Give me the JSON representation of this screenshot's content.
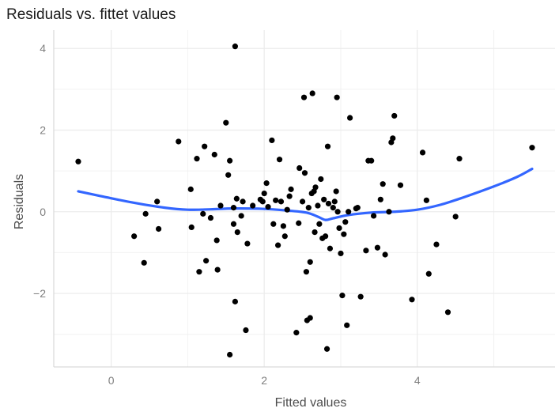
{
  "chart_data": {
    "type": "scatter",
    "title": "Residuals vs. fittet values",
    "xlabel": "Fitted values",
    "ylabel": "Residuals",
    "xlim": [
      -0.75,
      5.8
    ],
    "ylim": [
      -3.8,
      4.45
    ],
    "x_ticks": [
      0,
      2,
      4
    ],
    "y_ticks": [
      -2,
      0,
      2,
      4
    ],
    "x_tick_labels": [
      "0",
      "2",
      "4"
    ],
    "y_tick_labels": [
      "−2",
      "0",
      "2",
      "4"
    ],
    "grid": true,
    "point_color": "#000000",
    "smooth_color": "#3366ff",
    "points": [
      [
        -0.43,
        1.23
      ],
      [
        0.3,
        -0.6
      ],
      [
        0.43,
        -1.25
      ],
      [
        0.45,
        -0.05
      ],
      [
        0.6,
        0.25
      ],
      [
        0.62,
        -0.42
      ],
      [
        0.88,
        1.72
      ],
      [
        1.04,
        0.55
      ],
      [
        1.05,
        -0.38
      ],
      [
        1.12,
        1.3
      ],
      [
        1.15,
        -1.47
      ],
      [
        1.2,
        -0.05
      ],
      [
        1.22,
        1.6
      ],
      [
        1.24,
        -1.2
      ],
      [
        1.3,
        -0.15
      ],
      [
        1.35,
        1.4
      ],
      [
        1.38,
        -0.7
      ],
      [
        1.39,
        -1.42
      ],
      [
        1.43,
        0.15
      ],
      [
        1.5,
        2.18
      ],
      [
        1.53,
        0.9
      ],
      [
        1.55,
        1.25
      ],
      [
        1.55,
        -3.5
      ],
      [
        1.6,
        -0.3
      ],
      [
        1.6,
        0.1
      ],
      [
        1.62,
        -2.2
      ],
      [
        1.62,
        4.05
      ],
      [
        1.64,
        0.32
      ],
      [
        1.65,
        -0.5
      ],
      [
        1.7,
        -0.1
      ],
      [
        1.72,
        0.25
      ],
      [
        1.76,
        -2.9
      ],
      [
        1.78,
        -0.78
      ],
      [
        1.85,
        0.15
      ],
      [
        1.95,
        0.3
      ],
      [
        1.98,
        0.25
      ],
      [
        2.0,
        0.45
      ],
      [
        2.03,
        0.7
      ],
      [
        2.05,
        0.12
      ],
      [
        2.1,
        1.75
      ],
      [
        2.12,
        -0.3
      ],
      [
        2.15,
        0.28
      ],
      [
        2.18,
        -0.82
      ],
      [
        2.2,
        1.28
      ],
      [
        2.22,
        0.25
      ],
      [
        2.25,
        -0.35
      ],
      [
        2.27,
        -0.6
      ],
      [
        2.3,
        0.05
      ],
      [
        2.33,
        0.38
      ],
      [
        2.35,
        0.55
      ],
      [
        2.42,
        -2.96
      ],
      [
        2.45,
        -0.28
      ],
      [
        2.46,
        1.07
      ],
      [
        2.5,
        0.25
      ],
      [
        2.52,
        2.8
      ],
      [
        2.53,
        0.95
      ],
      [
        2.55,
        -1.47
      ],
      [
        2.56,
        -2.66
      ],
      [
        2.58,
        0.1
      ],
      [
        2.6,
        -2.6
      ],
      [
        2.6,
        -1.23
      ],
      [
        2.62,
        0.45
      ],
      [
        2.63,
        2.9
      ],
      [
        2.65,
        0.5
      ],
      [
        2.66,
        -0.5
      ],
      [
        2.67,
        0.6
      ],
      [
        2.7,
        0.15
      ],
      [
        2.72,
        -0.3
      ],
      [
        2.74,
        0.8
      ],
      [
        2.76,
        -0.65
      ],
      [
        2.78,
        0.3
      ],
      [
        2.8,
        -0.6
      ],
      [
        2.82,
        -3.36
      ],
      [
        2.83,
        1.6
      ],
      [
        2.84,
        0.2
      ],
      [
        2.86,
        -0.9
      ],
      [
        2.9,
        0.1
      ],
      [
        2.92,
        0.25
      ],
      [
        2.94,
        0.5
      ],
      [
        2.95,
        2.8
      ],
      [
        2.96,
        0.0
      ],
      [
        2.98,
        -0.4
      ],
      [
        3.0,
        -1.02
      ],
      [
        3.02,
        -2.05
      ],
      [
        3.04,
        -0.55
      ],
      [
        3.06,
        -0.25
      ],
      [
        3.08,
        -2.78
      ],
      [
        3.1,
        0.0
      ],
      [
        3.12,
        2.3
      ],
      [
        3.2,
        0.08
      ],
      [
        3.22,
        0.1
      ],
      [
        3.26,
        -2.08
      ],
      [
        3.33,
        -0.95
      ],
      [
        3.36,
        1.25
      ],
      [
        3.4,
        1.25
      ],
      [
        3.43,
        -0.1
      ],
      [
        3.48,
        -0.88
      ],
      [
        3.52,
        0.3
      ],
      [
        3.55,
        0.68
      ],
      [
        3.58,
        -1.05
      ],
      [
        3.63,
        0.0
      ],
      [
        3.66,
        1.7
      ],
      [
        3.68,
        1.8
      ],
      [
        3.7,
        2.35
      ],
      [
        3.78,
        0.65
      ],
      [
        3.93,
        -2.15
      ],
      [
        4.07,
        1.45
      ],
      [
        4.12,
        0.28
      ],
      [
        4.15,
        -1.52
      ],
      [
        4.25,
        -0.8
      ],
      [
        4.4,
        -2.46
      ],
      [
        4.5,
        -0.12
      ],
      [
        4.55,
        1.3
      ],
      [
        5.5,
        1.57
      ]
    ],
    "smooth": [
      [
        -0.43,
        0.5
      ],
      [
        -0.1,
        0.37
      ],
      [
        0.3,
        0.22
      ],
      [
        0.7,
        0.1
      ],
      [
        1.0,
        0.05
      ],
      [
        1.3,
        0.06
      ],
      [
        1.6,
        0.08
      ],
      [
        2.0,
        0.07
      ],
      [
        2.3,
        0.03
      ],
      [
        2.55,
        -0.02
      ],
      [
        2.7,
        -0.12
      ],
      [
        2.8,
        -0.2
      ],
      [
        2.9,
        -0.16
      ],
      [
        3.1,
        -0.08
      ],
      [
        3.4,
        -0.02
      ],
      [
        3.7,
        0.0
      ],
      [
        4.0,
        0.05
      ],
      [
        4.3,
        0.17
      ],
      [
        4.6,
        0.35
      ],
      [
        5.0,
        0.62
      ],
      [
        5.3,
        0.85
      ],
      [
        5.5,
        1.05
      ]
    ]
  }
}
